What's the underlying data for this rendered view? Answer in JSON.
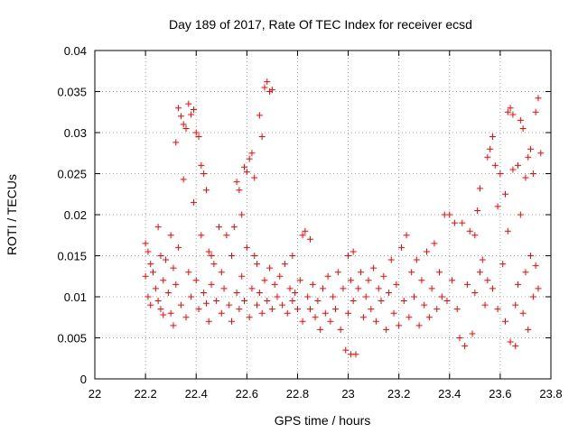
{
  "chart_data": {
    "type": "scatter",
    "title": "Day 189 of 2017, Rate Of TEC Index for receiver ecsd",
    "xlabel": "GPS time / hours",
    "ylabel": "ROTI / TECUs",
    "xlim": [
      22,
      23.8
    ],
    "ylim": [
      0,
      0.04
    ],
    "x_ticks": [
      "22",
      "22.2",
      "22.4",
      "22.6",
      "22.8",
      "23",
      "23.2",
      "23.4",
      "23.6",
      "23.8"
    ],
    "y_ticks": [
      "0",
      "0.005",
      "0.01",
      "0.015",
      "0.02",
      "0.025",
      "0.03",
      "0.035",
      "0.04"
    ],
    "grid": true,
    "marker": "+",
    "color": "#ff0000",
    "series": [
      {
        "points": [
          [
            22.2,
            0.0165
          ],
          [
            22.2,
            0.0125
          ],
          [
            22.21,
            0.0155
          ],
          [
            22.21,
            0.01
          ],
          [
            22.22,
            0.014
          ],
          [
            22.22,
            0.009
          ],
          [
            22.23,
            0.013
          ],
          [
            22.24,
            0.011
          ],
          [
            22.25,
            0.0185
          ],
          [
            22.25,
            0.0095
          ],
          [
            22.26,
            0.015
          ],
          [
            22.26,
            0.0085
          ],
          [
            22.27,
            0.012
          ],
          [
            22.27,
            0.0078
          ],
          [
            22.28,
            0.0145
          ],
          [
            22.29,
            0.0105
          ],
          [
            22.3,
            0.0175
          ],
          [
            22.3,
            0.008
          ],
          [
            22.31,
            0.0135
          ],
          [
            22.31,
            0.0065
          ],
          [
            22.32,
            0.0288
          ],
          [
            22.32,
            0.0115
          ],
          [
            22.33,
            0.033
          ],
          [
            22.33,
            0.016
          ],
          [
            22.34,
            0.032
          ],
          [
            22.34,
            0.009
          ],
          [
            22.35,
            0.031
          ],
          [
            22.35,
            0.0243
          ],
          [
            22.36,
            0.0305
          ],
          [
            22.36,
            0.0075
          ],
          [
            22.37,
            0.0335
          ],
          [
            22.37,
            0.013
          ],
          [
            22.38,
            0.0322
          ],
          [
            22.38,
            0.01
          ],
          [
            22.39,
            0.0328
          ],
          [
            22.39,
            0.0215
          ],
          [
            22.4,
            0.03
          ],
          [
            22.4,
            0.012
          ],
          [
            22.41,
            0.0295
          ],
          [
            22.41,
            0.0085
          ],
          [
            22.42,
            0.026
          ],
          [
            22.42,
            0.0175
          ],
          [
            22.43,
            0.025
          ],
          [
            22.43,
            0.0105
          ],
          [
            22.44,
            0.023
          ],
          [
            22.44,
            0.0092
          ],
          [
            22.45,
            0.0155
          ],
          [
            22.45,
            0.007
          ],
          [
            22.46,
            0.015
          ],
          [
            22.46,
            0.0115
          ],
          [
            22.47,
            0.014
          ],
          [
            22.48,
            0.0095
          ],
          [
            22.49,
            0.0185
          ],
          [
            22.5,
            0.008
          ],
          [
            22.5,
            0.013
          ],
          [
            22.51,
            0.011
          ],
          [
            22.52,
            0.0175
          ],
          [
            22.53,
            0.009
          ],
          [
            22.54,
            0.015
          ],
          [
            22.54,
            0.007
          ],
          [
            22.55,
            0.0185
          ],
          [
            22.56,
            0.0105
          ],
          [
            22.56,
            0.024
          ],
          [
            22.57,
            0.023
          ],
          [
            22.57,
            0.0085
          ],
          [
            22.58,
            0.02
          ],
          [
            22.58,
            0.0125
          ],
          [
            22.59,
            0.0258
          ],
          [
            22.59,
            0.0095
          ],
          [
            22.6,
            0.0252
          ],
          [
            22.6,
            0.016
          ],
          [
            22.61,
            0.0268
          ],
          [
            22.61,
            0.0075
          ],
          [
            22.62,
            0.0275
          ],
          [
            22.62,
            0.011
          ],
          [
            22.63,
            0.015
          ],
          [
            22.63,
            0.0245
          ],
          [
            22.64,
            0.009
          ],
          [
            22.64,
            0.014
          ],
          [
            22.65,
            0.0321
          ],
          [
            22.65,
            0.0105
          ],
          [
            22.66,
            0.0295
          ],
          [
            22.66,
            0.008
          ],
          [
            22.67,
            0.0355
          ],
          [
            22.67,
            0.012
          ],
          [
            22.68,
            0.0362
          ],
          [
            22.68,
            0.0095
          ],
          [
            22.69,
            0.035
          ],
          [
            22.69,
            0.0135
          ],
          [
            22.7,
            0.0352
          ],
          [
            22.7,
            0.0085
          ],
          [
            22.71,
            0.0115
          ],
          [
            22.72,
            0.01
          ],
          [
            22.73,
            0.0125
          ],
          [
            22.74,
            0.009
          ],
          [
            22.75,
            0.014
          ],
          [
            22.76,
            0.008
          ],
          [
            22.77,
            0.011
          ],
          [
            22.78,
            0.015
          ],
          [
            22.78,
            0.0095
          ],
          [
            22.79,
            0.0105
          ],
          [
            22.8,
            0.0085
          ],
          [
            22.81,
            0.012
          ],
          [
            22.82,
            0.0175
          ],
          [
            22.82,
            0.007
          ],
          [
            22.83,
            0.018
          ],
          [
            22.84,
            0.01
          ],
          [
            22.85,
            0.017
          ],
          [
            22.85,
            0.0085
          ],
          [
            22.86,
            0.0115
          ],
          [
            22.87,
            0.0075
          ],
          [
            22.88,
            0.0095
          ],
          [
            22.89,
            0.006
          ],
          [
            22.9,
            0.011
          ],
          [
            22.91,
            0.008
          ],
          [
            22.92,
            0.0125
          ],
          [
            22.93,
            0.007
          ],
          [
            22.94,
            0.01
          ],
          [
            22.95,
            0.0085
          ],
          [
            22.96,
            0.013
          ],
          [
            22.97,
            0.006
          ],
          [
            22.98,
            0.011
          ],
          [
            22.99,
            0.0035
          ],
          [
            23.0,
            0.015
          ],
          [
            23.0,
            0.008
          ],
          [
            23.01,
            0.003
          ],
          [
            23.01,
            0.012
          ],
          [
            23.02,
            0.0155
          ],
          [
            23.02,
            0.0095
          ],
          [
            23.03,
            0.003
          ],
          [
            23.04,
            0.011
          ],
          [
            23.05,
            0.013
          ],
          [
            23.06,
            0.0075
          ],
          [
            23.07,
            0.01
          ],
          [
            23.08,
            0.012
          ],
          [
            23.09,
            0.0085
          ],
          [
            23.1,
            0.0135
          ],
          [
            23.11,
            0.007
          ],
          [
            23.12,
            0.011
          ],
          [
            23.13,
            0.0095
          ],
          [
            23.14,
            0.0125
          ],
          [
            23.15,
            0.006
          ],
          [
            23.16,
            0.0105
          ],
          [
            23.17,
            0.0145
          ],
          [
            23.18,
            0.008
          ],
          [
            23.19,
            0.0115
          ],
          [
            23.2,
            0.0065
          ],
          [
            23.21,
            0.016
          ],
          [
            23.22,
            0.0095
          ],
          [
            23.23,
            0.0175
          ],
          [
            23.24,
            0.0075
          ],
          [
            23.25,
            0.013
          ],
          [
            23.26,
            0.01
          ],
          [
            23.27,
            0.0145
          ],
          [
            23.28,
            0.0065
          ],
          [
            23.29,
            0.012
          ],
          [
            23.3,
            0.009
          ],
          [
            23.31,
            0.0155
          ],
          [
            23.32,
            0.0075
          ],
          [
            23.33,
            0.011
          ],
          [
            23.34,
            0.0165
          ],
          [
            23.35,
            0.0085
          ],
          [
            23.36,
            0.013
          ],
          [
            23.37,
            0.01
          ],
          [
            23.38,
            0.02
          ],
          [
            23.39,
            0.0095
          ],
          [
            23.4,
            0.02
          ],
          [
            23.41,
            0.012
          ],
          [
            23.42,
            0.019
          ],
          [
            23.43,
            0.0085
          ],
          [
            23.44,
            0.005
          ],
          [
            23.45,
            0.019
          ],
          [
            23.46,
            0.004
          ],
          [
            23.47,
            0.0115
          ],
          [
            23.48,
            0.018
          ],
          [
            23.49,
            0.0055
          ],
          [
            23.5,
            0.0175
          ],
          [
            23.5,
            0.0105
          ],
          [
            23.51,
            0.0205
          ],
          [
            23.52,
            0.013
          ],
          [
            23.52,
            0.0232
          ],
          [
            23.53,
            0.0145
          ],
          [
            23.54,
            0.009
          ],
          [
            23.55,
            0.027
          ],
          [
            23.55,
            0.012
          ],
          [
            23.56,
            0.028
          ],
          [
            23.57,
            0.0295
          ],
          [
            23.57,
            0.011
          ],
          [
            23.58,
            0.026
          ],
          [
            23.59,
            0.021
          ],
          [
            23.59,
            0.0085
          ],
          [
            23.6,
            0.025
          ],
          [
            23.61,
            0.014
          ],
          [
            23.62,
            0.0225
          ],
          [
            23.62,
            0.007
          ],
          [
            23.63,
            0.0325
          ],
          [
            23.63,
            0.018
          ],
          [
            23.64,
            0.033
          ],
          [
            23.64,
            0.0045
          ],
          [
            23.65,
            0.0322
          ],
          [
            23.65,
            0.0255
          ],
          [
            23.66,
            0.009
          ],
          [
            23.66,
            0.004
          ],
          [
            23.67,
            0.026
          ],
          [
            23.67,
            0.0115
          ],
          [
            23.68,
            0.0315
          ],
          [
            23.68,
            0.02
          ],
          [
            23.69,
            0.0305
          ],
          [
            23.69,
            0.008
          ],
          [
            23.7,
            0.0245
          ],
          [
            23.7,
            0.013
          ],
          [
            23.71,
            0.027
          ],
          [
            23.71,
            0.006
          ],
          [
            23.72,
            0.028
          ],
          [
            23.72,
            0.015
          ],
          [
            23.73,
            0.025
          ],
          [
            23.73,
            0.01
          ],
          [
            23.74,
            0.0325
          ],
          [
            23.74,
            0.0138
          ],
          [
            23.75,
            0.0342
          ],
          [
            23.75,
            0.011
          ],
          [
            23.76,
            0.0275
          ]
        ]
      }
    ]
  }
}
